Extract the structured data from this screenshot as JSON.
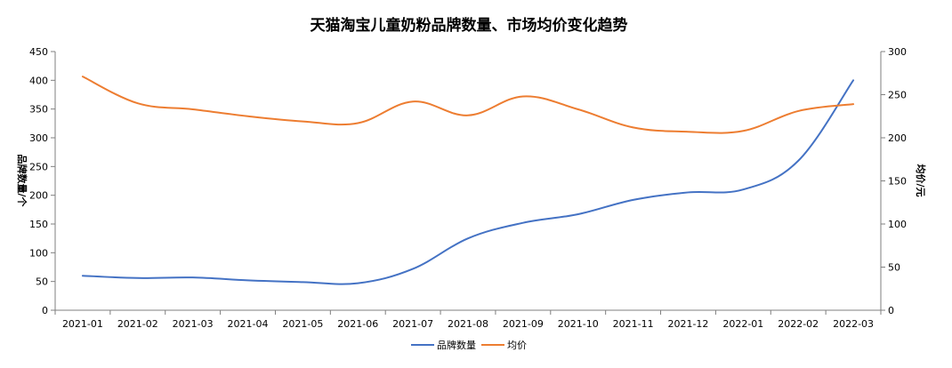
{
  "chart_data": {
    "type": "line",
    "title": "天猫淘宝儿童奶粉品牌数量、市场均价变化趋势",
    "categories": [
      "2021-01",
      "2021-02",
      "2021-03",
      "2021-04",
      "2021-05",
      "2021-06",
      "2021-07",
      "2021-08",
      "2021-09",
      "2021-10",
      "2021-11",
      "2021-12",
      "2022-01",
      "2022-02",
      "2022-03"
    ],
    "y_left": {
      "label": "品牌数量/个",
      "ylim": [
        0,
        450
      ],
      "ticks": [
        0,
        50,
        100,
        150,
        200,
        250,
        300,
        350,
        400,
        450
      ]
    },
    "y_right": {
      "label": "均价/元",
      "ylim": [
        0,
        300
      ],
      "ticks": [
        0,
        50,
        100,
        150,
        200,
        250,
        300
      ]
    },
    "series": [
      {
        "name": "品牌数量",
        "axis": "left",
        "color": "#4472C4",
        "values": [
          60,
          56,
          57,
          52,
          49,
          47,
          72,
          125,
          152,
          167,
          192,
          205,
          210,
          260,
          400
        ]
      },
      {
        "name": "均价",
        "axis": "right",
        "color": "#ED7D31",
        "values": [
          271,
          240,
          233,
          225,
          219,
          217,
          242,
          226,
          248,
          233,
          212,
          207,
          208,
          231,
          239
        ]
      }
    ],
    "grid": false,
    "legend_position": "bottom"
  }
}
